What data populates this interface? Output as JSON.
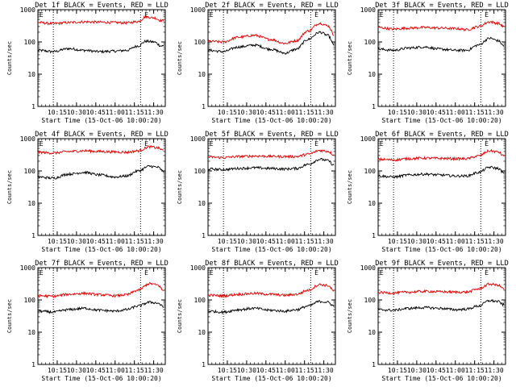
{
  "figure": {
    "colors": {
      "events": "#000000",
      "lld": "#dd0000",
      "axis": "#000000",
      "background": "#ffffff"
    }
  },
  "chart_data": [
    {
      "type": "line",
      "title": "Det 1f BLACK = Events, RED = LLD",
      "xlabel": "Start Time (15-Oct-06 10:00:20)",
      "ylabel": "Counts/sec",
      "y_scale": "log",
      "ylim": [
        1,
        1000
      ],
      "y_tick_labels": [
        "1",
        "10",
        "100",
        "1000"
      ],
      "xlim": [
        10.0,
        11.65
      ],
      "x_tick_labels": [
        "10:15",
        "10:30",
        "10:45",
        "11:00",
        "11:15",
        "11:30"
      ],
      "vlines_dotted": [
        10.2,
        11.33
      ],
      "markers": [
        {
          "label": "E",
          "x": 10.02
        },
        {
          "label": "E",
          "x": 11.38
        }
      ],
      "series": [
        {
          "legend": "BLACK",
          "color": "#000000",
          "x": [
            10.0,
            10.2,
            10.4,
            10.6,
            10.8,
            11.0,
            11.15,
            11.3,
            11.4,
            11.5,
            11.6
          ],
          "values": [
            55,
            50,
            62,
            55,
            50,
            52,
            55,
            75,
            105,
            100,
            75
          ]
        },
        {
          "legend": "RED",
          "color": "#dd0000",
          "x": [
            10.0,
            10.2,
            10.4,
            10.6,
            10.8,
            11.0,
            11.15,
            11.3,
            11.4,
            11.5,
            11.6
          ],
          "values": [
            400,
            370,
            400,
            420,
            410,
            400,
            390,
            430,
            600,
            560,
            460
          ]
        }
      ]
    },
    {
      "type": "line",
      "title": "Det 2f BLACK = Events, RED = LLD",
      "xlabel": "Start Time (15-Oct-06 10:00:20)",
      "ylabel": "Counts/sec",
      "y_scale": "log",
      "ylim": [
        1,
        1000
      ],
      "y_tick_labels": [
        "1",
        "10",
        "100",
        "1000"
      ],
      "xlim": [
        10.0,
        11.65
      ],
      "x_tick_labels": [
        "10:15",
        "10:30",
        "10:45",
        "11:00",
        "11:15",
        "11:30"
      ],
      "vlines_dotted": [
        10.2,
        11.33
      ],
      "markers": [
        {
          "label": "E",
          "x": 10.02
        },
        {
          "label": "E",
          "x": 11.38
        }
      ],
      "series": [
        {
          "legend": "BLACK",
          "color": "#000000",
          "x": [
            10.0,
            10.2,
            10.4,
            10.6,
            10.8,
            11.0,
            11.15,
            11.3,
            11.45,
            11.55,
            11.63
          ],
          "values": [
            55,
            50,
            70,
            80,
            60,
            45,
            60,
            120,
            200,
            160,
            80
          ]
        },
        {
          "legend": "RED",
          "color": "#dd0000",
          "x": [
            10.0,
            10.2,
            10.4,
            10.6,
            10.8,
            11.0,
            11.15,
            11.3,
            11.45,
            11.55,
            11.63
          ],
          "values": [
            105,
            100,
            140,
            160,
            120,
            90,
            110,
            220,
            380,
            320,
            170
          ]
        }
      ]
    },
    {
      "type": "line",
      "title": "Det 3f BLACK = Events, RED = LLD",
      "xlabel": "Start Time (15-Oct-06 10:00:20)",
      "ylabel": "Counts/sec",
      "y_scale": "log",
      "ylim": [
        1,
        1000
      ],
      "y_tick_labels": [
        "1",
        "10",
        "100",
        "1000"
      ],
      "xlim": [
        10.0,
        11.65
      ],
      "x_tick_labels": [
        "10:15",
        "10:30",
        "10:45",
        "11:00",
        "11:15",
        "11:30"
      ],
      "vlines_dotted": [
        10.2,
        11.33
      ],
      "markers": [
        {
          "label": "E",
          "x": 10.02
        },
        {
          "label": "E",
          "x": 11.38
        }
      ],
      "series": [
        {
          "legend": "BLACK",
          "color": "#000000",
          "x": [
            10.0,
            10.2,
            10.4,
            10.6,
            10.8,
            11.0,
            11.15,
            11.3,
            11.45,
            11.55,
            11.63
          ],
          "values": [
            60,
            55,
            65,
            70,
            60,
            55,
            55,
            80,
            130,
            110,
            75
          ]
        },
        {
          "legend": "RED",
          "color": "#dd0000",
          "x": [
            10.0,
            10.2,
            10.4,
            10.6,
            10.8,
            11.0,
            11.15,
            11.3,
            11.45,
            11.55,
            11.63
          ],
          "values": [
            280,
            250,
            270,
            280,
            270,
            260,
            240,
            300,
            420,
            380,
            300
          ]
        }
      ]
    },
    {
      "type": "line",
      "title": "Det 4f BLACK = Events, RED = LLD",
      "xlabel": "Start Time (15-Oct-06 10:00:20)",
      "ylabel": "Counts/sec",
      "y_scale": "log",
      "ylim": [
        1,
        1000
      ],
      "y_tick_labels": [
        "1",
        "10",
        "100",
        "1000"
      ],
      "xlim": [
        10.0,
        11.65
      ],
      "x_tick_labels": [
        "10:15",
        "10:30",
        "10:45",
        "11:00",
        "11:15",
        "11:30"
      ],
      "vlines_dotted": [
        10.2,
        11.33
      ],
      "markers": [
        {
          "label": "E",
          "x": 10.02
        },
        {
          "label": "E",
          "x": 11.38
        }
      ],
      "series": [
        {
          "legend": "BLACK",
          "color": "#000000",
          "x": [
            10.0,
            10.2,
            10.4,
            10.6,
            10.8,
            11.0,
            11.15,
            11.3,
            11.45,
            11.55,
            11.63
          ],
          "values": [
            65,
            60,
            80,
            90,
            75,
            65,
            70,
            100,
            140,
            130,
            95
          ]
        },
        {
          "legend": "RED",
          "color": "#dd0000",
          "x": [
            10.0,
            10.2,
            10.4,
            10.6,
            10.8,
            11.0,
            11.15,
            11.3,
            11.45,
            11.55,
            11.63
          ],
          "values": [
            380,
            360,
            400,
            420,
            400,
            390,
            380,
            420,
            560,
            520,
            430
          ]
        }
      ]
    },
    {
      "type": "line",
      "title": "Det 5f BLACK = Events, RED = LLD",
      "xlabel": "Start Time (15-Oct-06 10:00:20)",
      "ylabel": "Counts/sec",
      "y_scale": "log",
      "ylim": [
        1,
        1000
      ],
      "y_tick_labels": [
        "1",
        "10",
        "100",
        "1000"
      ],
      "xlim": [
        10.0,
        11.65
      ],
      "x_tick_labels": [
        "10:15",
        "10:30",
        "10:45",
        "11:00",
        "11:15",
        "11:30"
      ],
      "vlines_dotted": [
        10.2,
        11.33
      ],
      "markers": [
        {
          "label": "E",
          "x": 10.02
        },
        {
          "label": "E",
          "x": 11.38
        }
      ],
      "series": [
        {
          "legend": "BLACK",
          "color": "#000000",
          "x": [
            10.0,
            10.2,
            10.4,
            10.6,
            10.8,
            11.0,
            11.15,
            11.3,
            11.45,
            11.55,
            11.63
          ],
          "values": [
            115,
            110,
            120,
            125,
            120,
            115,
            120,
            160,
            230,
            210,
            150
          ]
        },
        {
          "legend": "RED",
          "color": "#dd0000",
          "x": [
            10.0,
            10.2,
            10.4,
            10.6,
            10.8,
            11.0,
            11.15,
            11.3,
            11.45,
            11.55,
            11.63
          ],
          "values": [
            270,
            260,
            280,
            290,
            285,
            280,
            280,
            330,
            430,
            410,
            320
          ]
        }
      ]
    },
    {
      "type": "line",
      "title": "Det 6f BLACK = Events, RED = LLD",
      "xlabel": "Start Time (15-Oct-06 10:00:20)",
      "ylabel": "Counts/sec",
      "y_scale": "log",
      "ylim": [
        1,
        1000
      ],
      "y_tick_labels": [
        "1",
        "10",
        "100",
        "1000"
      ],
      "xlim": [
        10.0,
        11.65
      ],
      "x_tick_labels": [
        "10:15",
        "10:30",
        "10:45",
        "11:00",
        "11:15",
        "11:30"
      ],
      "vlines_dotted": [
        10.2,
        11.33
      ],
      "markers": [
        {
          "label": "E",
          "x": 10.02
        },
        {
          "label": "E",
          "x": 11.38
        }
      ],
      "series": [
        {
          "legend": "BLACK",
          "color": "#000000",
          "x": [
            10.0,
            10.2,
            10.4,
            10.6,
            10.8,
            11.0,
            11.15,
            11.3,
            11.45,
            11.55,
            11.63
          ],
          "values": [
            70,
            65,
            75,
            80,
            75,
            70,
            70,
            90,
            130,
            120,
            85
          ]
        },
        {
          "legend": "RED",
          "color": "#dd0000",
          "x": [
            10.0,
            10.2,
            10.4,
            10.6,
            10.8,
            11.0,
            11.15,
            11.3,
            11.45,
            11.55,
            11.63
          ],
          "values": [
            230,
            220,
            240,
            250,
            245,
            240,
            240,
            290,
            420,
            390,
            290
          ]
        }
      ]
    },
    {
      "type": "line",
      "title": "Det 7f BLACK = Events, RED = LLD",
      "xlabel": "Start Time (15-Oct-06 10:00:20)",
      "ylabel": "Counts/sec",
      "y_scale": "log",
      "ylim": [
        1,
        1000
      ],
      "y_tick_labels": [
        "1",
        "10",
        "100",
        "1000"
      ],
      "xlim": [
        10.0,
        11.65
      ],
      "x_tick_labels": [
        "10:15",
        "10:30",
        "10:45",
        "11:00",
        "11:15",
        "11:30"
      ],
      "vlines_dotted": [
        10.2,
        11.33
      ],
      "markers": [
        {
          "label": "E",
          "x": 10.02
        },
        {
          "label": "E",
          "x": 11.38
        }
      ],
      "series": [
        {
          "legend": "BLACK",
          "color": "#000000",
          "x": [
            10.0,
            10.2,
            10.4,
            10.6,
            10.8,
            11.0,
            11.15,
            11.3,
            11.45,
            11.55,
            11.63
          ],
          "values": [
            45,
            42,
            50,
            55,
            48,
            45,
            50,
            65,
            85,
            80,
            60
          ]
        },
        {
          "legend": "RED",
          "color": "#dd0000",
          "x": [
            10.0,
            10.2,
            10.4,
            10.6,
            10.8,
            11.0,
            11.15,
            11.3,
            11.45,
            11.55,
            11.63
          ],
          "values": [
            135,
            130,
            150,
            160,
            145,
            135,
            145,
            200,
            320,
            290,
            190
          ]
        }
      ]
    },
    {
      "type": "line",
      "title": "Det 8f BLACK = Events, RED = LLD",
      "xlabel": "Start Time (15-Oct-06 10:00:20)",
      "ylabel": "Counts/sec",
      "y_scale": "log",
      "ylim": [
        1,
        1000
      ],
      "y_tick_labels": [
        "1",
        "10",
        "100",
        "1000"
      ],
      "xlim": [
        10.0,
        11.65
      ],
      "x_tick_labels": [
        "10:15",
        "10:30",
        "10:45",
        "11:00",
        "11:15",
        "11:30"
      ],
      "vlines_dotted": [
        10.2,
        11.33
      ],
      "markers": [
        {
          "label": "E",
          "x": 10.02
        },
        {
          "label": "E",
          "x": 11.38
        }
      ],
      "series": [
        {
          "legend": "BLACK",
          "color": "#000000",
          "x": [
            10.0,
            10.2,
            10.4,
            10.6,
            10.8,
            11.0,
            11.15,
            11.3,
            11.45,
            11.55,
            11.63
          ],
          "values": [
            45,
            42,
            50,
            55,
            48,
            45,
            50,
            65,
            90,
            85,
            65
          ]
        },
        {
          "legend": "RED",
          "color": "#dd0000",
          "x": [
            10.0,
            10.2,
            10.4,
            10.6,
            10.8,
            11.0,
            11.15,
            11.3,
            11.45,
            11.55,
            11.63
          ],
          "values": [
            140,
            135,
            150,
            160,
            150,
            140,
            150,
            200,
            300,
            280,
            190
          ]
        }
      ]
    },
    {
      "type": "line",
      "title": "Det 9f BLACK = Events, RED = LLD",
      "xlabel": "Start Time (15-Oct-06 10:00:20)",
      "ylabel": "Counts/sec",
      "y_scale": "log",
      "ylim": [
        1,
        1000
      ],
      "y_tick_labels": [
        "1",
        "10",
        "100",
        "1000"
      ],
      "xlim": [
        10.0,
        11.65
      ],
      "x_tick_labels": [
        "10:15",
        "10:30",
        "10:45",
        "11:00",
        "11:15",
        "11:30"
      ],
      "vlines_dotted": [
        10.2,
        11.33
      ],
      "markers": [
        {
          "label": "E",
          "x": 10.02
        },
        {
          "label": "E",
          "x": 11.38
        }
      ],
      "series": [
        {
          "legend": "BLACK",
          "color": "#000000",
          "x": [
            10.0,
            10.2,
            10.4,
            10.6,
            10.8,
            11.0,
            11.15,
            11.3,
            11.45,
            11.55,
            11.63
          ],
          "values": [
            50,
            48,
            55,
            58,
            55,
            50,
            52,
            65,
            95,
            90,
            70
          ]
        },
        {
          "legend": "RED",
          "color": "#dd0000",
          "x": [
            10.0,
            10.2,
            10.4,
            10.6,
            10.8,
            11.0,
            11.15,
            11.3,
            11.45,
            11.55,
            11.63
          ],
          "values": [
            170,
            165,
            175,
            185,
            180,
            175,
            175,
            220,
            310,
            290,
            220
          ]
        }
      ]
    }
  ]
}
